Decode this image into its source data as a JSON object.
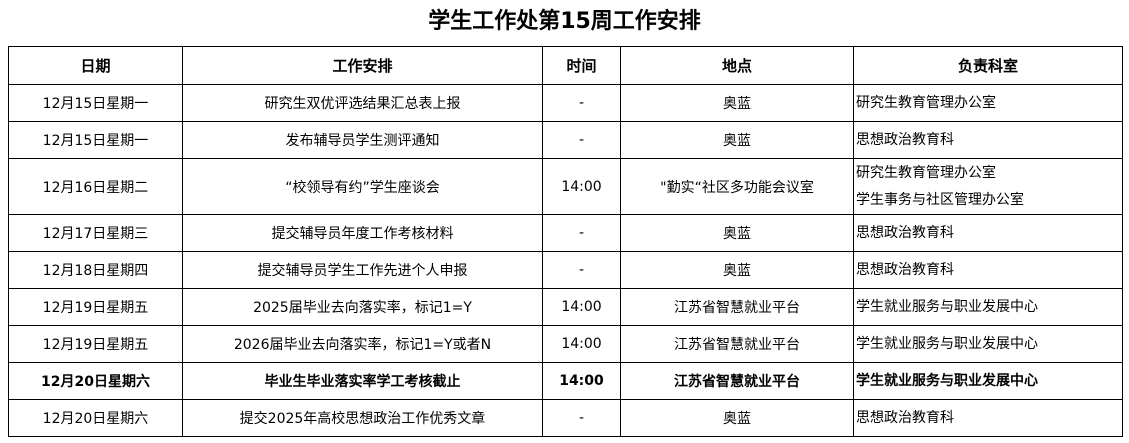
{
  "title": "学生工作处第15周工作安排",
  "headers": [
    "日期",
    "工作安排",
    "时间",
    "地点",
    "负责科室"
  ],
  "rows": [
    {
      "date": "12月15日星期一",
      "task": "研究生双优评选结果汇总表上报",
      "time": "-",
      "place": "奥蓝",
      "dept": [
        "研究生教育管理办公室"
      ]
    },
    {
      "date": "12月15日星期一",
      "task": "发布辅导员学生测评通知",
      "time": "-",
      "place": "奥蓝",
      "dept": [
        "思想政治教育科"
      ]
    },
    {
      "date": "12月16日星期二",
      "task": "“校领导有约”学生座谈会",
      "time": "14:00",
      "place": "\"勤实“社区多功能会议室",
      "dept": [
        "研究生教育管理办公室",
        "学生事务与社区管理办公室"
      ]
    },
    {
      "date": "12月17日星期三",
      "task": "提交辅导员年度工作考核材料",
      "time": "-",
      "place": "奥蓝",
      "dept": [
        "思想政治教育科"
      ]
    },
    {
      "date": "12月18日星期四",
      "task": "提交辅导员学生工作先进个人申报",
      "time": "-",
      "place": "奥蓝",
      "dept": [
        "思想政治教育科"
      ]
    },
    {
      "date": "12月19日星期五",
      "task": "2025届毕业去向落实率，标记1=Y",
      "time": "14:00",
      "place": "江苏省智慧就业平台",
      "dept": [
        "学生就业服务与职业发展中心"
      ]
    },
    {
      "date": "12月19日星期五",
      "task": "2026届毕业去向落实率，标记1=Y或者N",
      "time": "14:00",
      "place": "江苏省智慧就业平台",
      "dept": [
        "学生就业服务与职业发展中心"
      ]
    },
    {
      "date": "12月20日星期六",
      "task": "毕业生毕业落实率学工考核截止",
      "time": "14:00",
      "place": "江苏省智慧就业平台",
      "dept": [
        "学生就业服务与职业发展中心"
      ],
      "bold": true
    },
    {
      "date": "12月20日星期六",
      "task": "提交2025年高校思想政治工作优秀文章",
      "time": "-",
      "place": "奥蓝",
      "dept": [
        "思想政治教育科"
      ]
    }
  ]
}
